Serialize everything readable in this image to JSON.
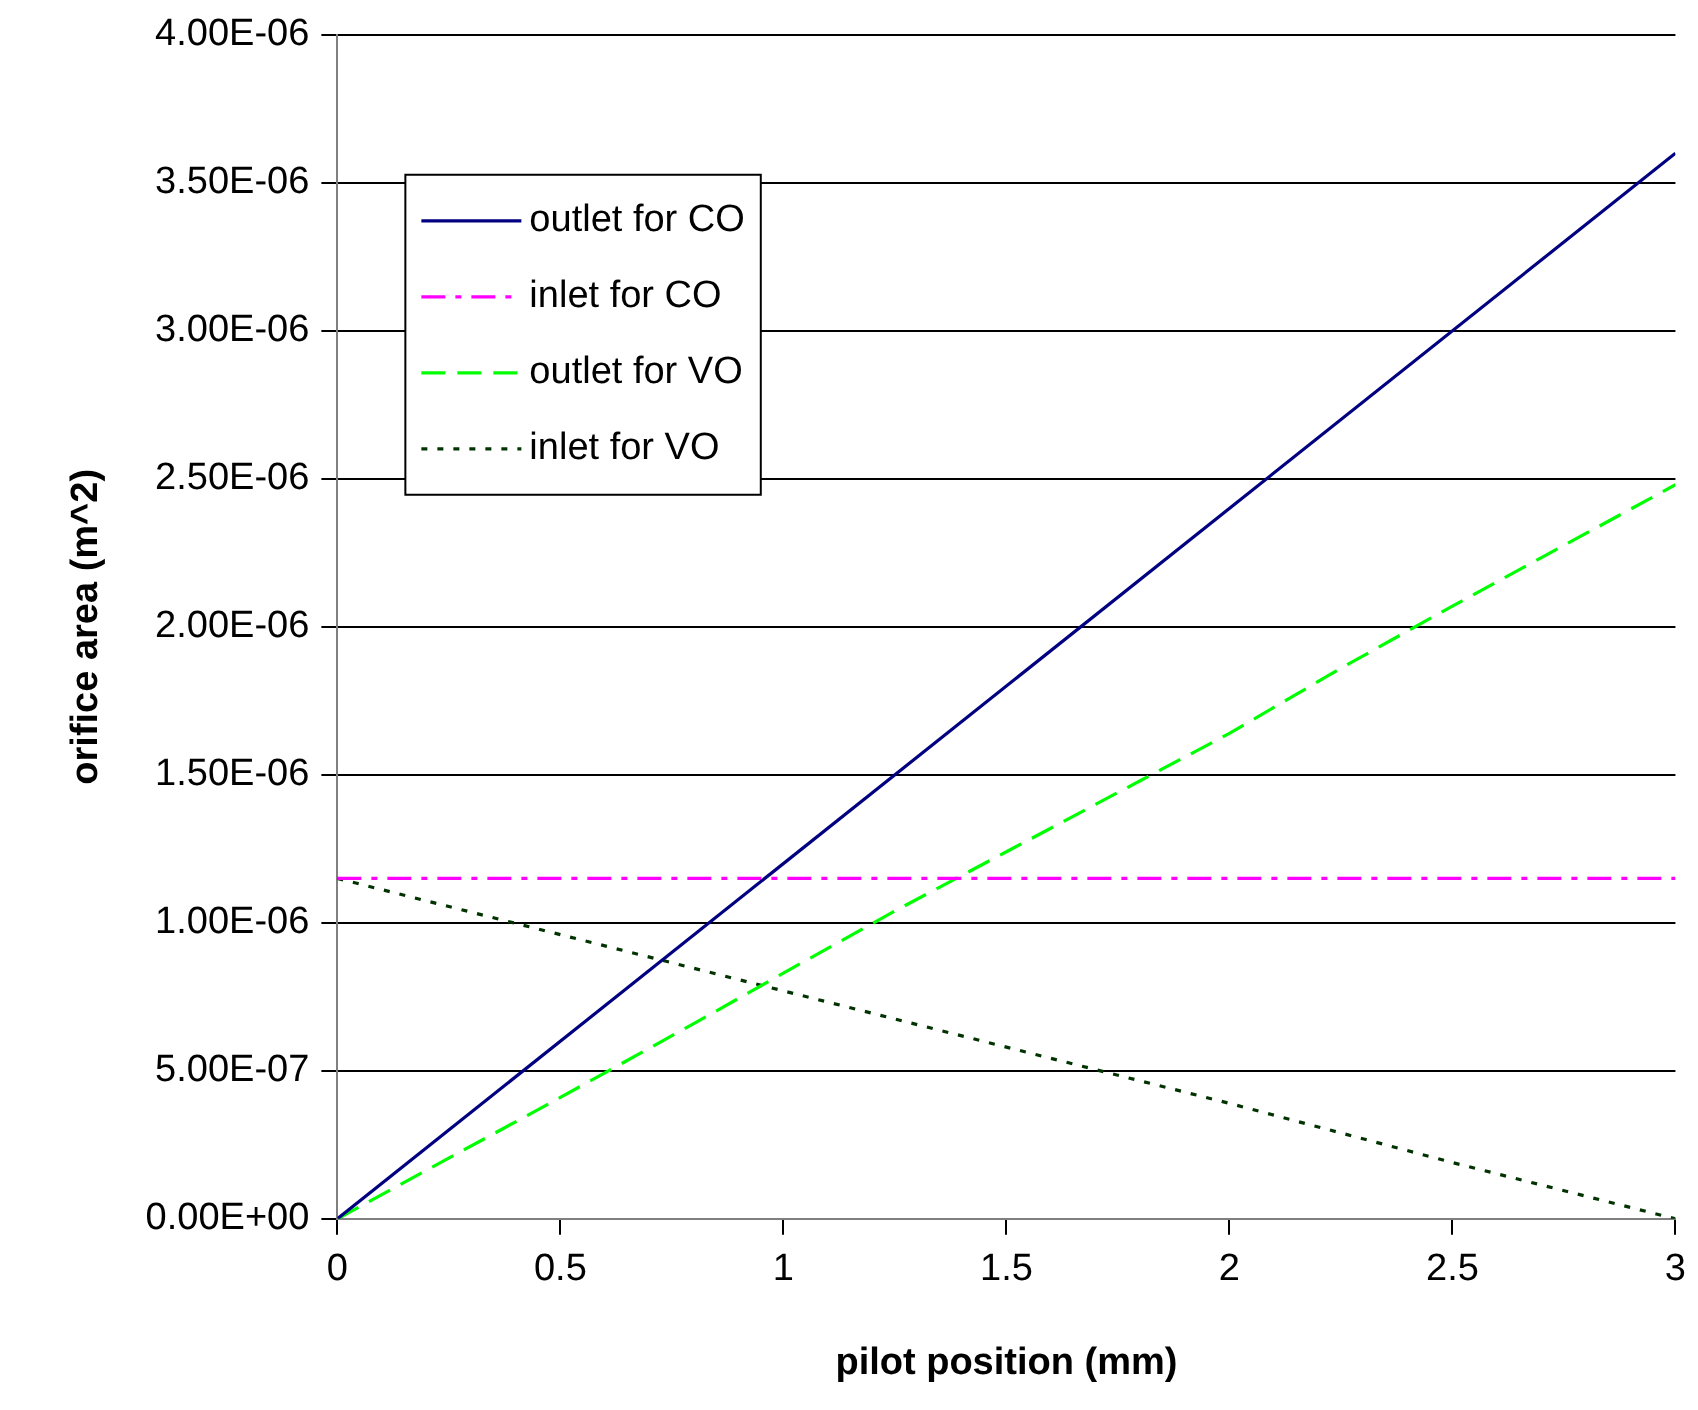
{
  "chart_data": {
    "type": "line",
    "xlabel": "pilot position (mm)",
    "ylabel": "orifice area (m^2)",
    "xlim": [
      0,
      3
    ],
    "xticks": [
      0,
      0.5,
      1,
      1.5,
      2,
      2.5,
      3
    ],
    "ylim": [
      0,
      4e-06
    ],
    "yticks": [
      {
        "value": 0,
        "label": "0.00E+00"
      },
      {
        "value": 5e-07,
        "label": "5.00E-07"
      },
      {
        "value": 1e-06,
        "label": "1.00E-06"
      },
      {
        "value": 1.5e-06,
        "label": "1.50E-06"
      },
      {
        "value": 2e-06,
        "label": "2.00E-06"
      },
      {
        "value": 2.5e-06,
        "label": "2.50E-06"
      },
      {
        "value": 3e-06,
        "label": "3.00E-06"
      },
      {
        "value": 3.5e-06,
        "label": "3.50E-06"
      },
      {
        "value": 4e-06,
        "label": "4.00E-06"
      }
    ],
    "grid": "y",
    "legend": "top left",
    "marker": "none",
    "series": [
      {
        "name": "outlet for CO",
        "color": "#000080",
        "line_style": "solid",
        "x": [
          0,
          3
        ],
        "values": [
          0,
          3.6e-06
        ]
      },
      {
        "name": "inlet for CO",
        "color": "#ff00ff",
        "line_style": "dashdot",
        "x": [
          0,
          3
        ],
        "values": [
          1.15e-06,
          1.15e-06
        ]
      },
      {
        "name": "outlet for VO",
        "color": "#00ff00",
        "line_style": "dashed",
        "x": [
          0,
          0.5,
          0.8,
          1,
          1.25,
          1.5,
          1.8,
          2,
          2.25,
          2.5,
          3
        ],
        "values": [
          0,
          4.1e-07,
          6.6e-07,
          8.3e-07,
          1.04e-06,
          1.24e-06,
          1.48e-06,
          1.64e-06,
          1.86e-06,
          2.07e-06,
          2.48e-06
        ]
      },
      {
        "name": "inlet for VO",
        "color": "#003300",
        "line_style": "dotted",
        "x": [
          0,
          0.5,
          1,
          1.5,
          2,
          2.5,
          3
        ],
        "values": [
          1.15e-06,
          9.6e-07,
          7.7e-07,
          5.8e-07,
          3.9e-07,
          1.9e-07,
          0
        ]
      }
    ]
  }
}
